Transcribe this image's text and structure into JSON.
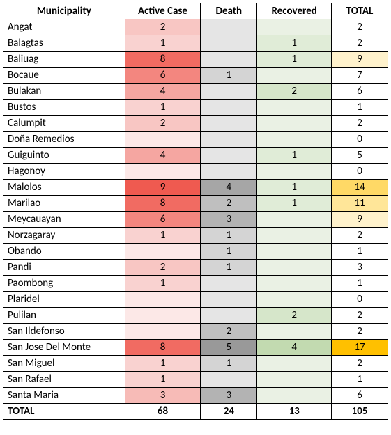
{
  "columns": [
    "Municipality",
    "Active Case",
    "Death",
    "Recovered",
    "TOTAL"
  ],
  "colors": {
    "active": {
      "0": "#fce8e7",
      "1": "#f9d2d0",
      "2": "#f8c6c3",
      "3": "#f7bbb7",
      "4": "#f5a6a1",
      "6": "#f3867f",
      "8": "#f16b62",
      "9": "#ef5a50"
    },
    "death": {
      "0": "#e5e5e5",
      "1": "#d4d4d4",
      "2": "#bfbfbf",
      "3": "#b3b3b3",
      "4": "#a6a6a6",
      "5": "#999999"
    },
    "recovered": {
      "0": "#eaf1e4",
      "1": "#e0ecd7",
      "2": "#d6e6ca",
      "4": "#c2dab0"
    },
    "total": {
      "default": "#ffffff",
      "9": "#fff2cc",
      "11": "#ffe699",
      "14": "#ffd966",
      "17": "#ffc000"
    }
  },
  "rows": [
    {
      "muni": "Angat",
      "active": 2,
      "death": null,
      "recov": null,
      "total": 2
    },
    {
      "muni": "Balagtas",
      "active": 1,
      "death": null,
      "recov": 1,
      "total": 2
    },
    {
      "muni": "Baliuag",
      "active": 8,
      "death": null,
      "recov": 1,
      "total": 9
    },
    {
      "muni": "Bocaue",
      "active": 6,
      "death": 1,
      "recov": null,
      "total": 7
    },
    {
      "muni": "Bulakan",
      "active": 4,
      "death": null,
      "recov": 2,
      "total": 6
    },
    {
      "muni": "Bustos",
      "active": 1,
      "death": null,
      "recov": null,
      "total": 1
    },
    {
      "muni": "Calumpit",
      "active": 2,
      "death": null,
      "recov": null,
      "total": 2
    },
    {
      "muni": "Doña Remedios",
      "active": null,
      "death": null,
      "recov": null,
      "total": 0
    },
    {
      "muni": "Guiguinto",
      "active": 4,
      "death": null,
      "recov": 1,
      "total": 5
    },
    {
      "muni": "Hagonoy",
      "active": null,
      "death": null,
      "recov": null,
      "total": 0
    },
    {
      "muni": "Malolos",
      "active": 9,
      "death": 4,
      "recov": 1,
      "total": 14
    },
    {
      "muni": "Marilao",
      "active": 8,
      "death": 2,
      "recov": 1,
      "total": 11
    },
    {
      "muni": "Meycauayan",
      "active": 6,
      "death": 3,
      "recov": null,
      "total": 9
    },
    {
      "muni": "Norzagaray",
      "active": 1,
      "death": 1,
      "recov": null,
      "total": 2
    },
    {
      "muni": "Obando",
      "active": null,
      "death": 1,
      "recov": null,
      "total": 1
    },
    {
      "muni": "Pandi",
      "active": 2,
      "death": 1,
      "recov": null,
      "total": 3
    },
    {
      "muni": "Paombong",
      "active": 1,
      "death": null,
      "recov": null,
      "total": 1
    },
    {
      "muni": "Plaridel",
      "active": null,
      "death": null,
      "recov": null,
      "total": 0
    },
    {
      "muni": "Pulilan",
      "active": null,
      "death": null,
      "recov": 2,
      "total": 2
    },
    {
      "muni": "San Ildefonso",
      "active": null,
      "death": 2,
      "recov": null,
      "total": 2
    },
    {
      "muni": "San Jose Del Monte",
      "active": 8,
      "death": 5,
      "recov": 4,
      "total": 17
    },
    {
      "muni": "San Miguel",
      "active": 1,
      "death": 1,
      "recov": null,
      "total": 2
    },
    {
      "muni": "San Rafael",
      "active": 1,
      "death": null,
      "recov": null,
      "total": 1
    },
    {
      "muni": "Santa Maria",
      "active": 3,
      "death": 3,
      "recov": null,
      "total": 6
    }
  ],
  "totals": {
    "label": "TOTAL",
    "active": 68,
    "death": 24,
    "recov": 13,
    "total": 105
  }
}
